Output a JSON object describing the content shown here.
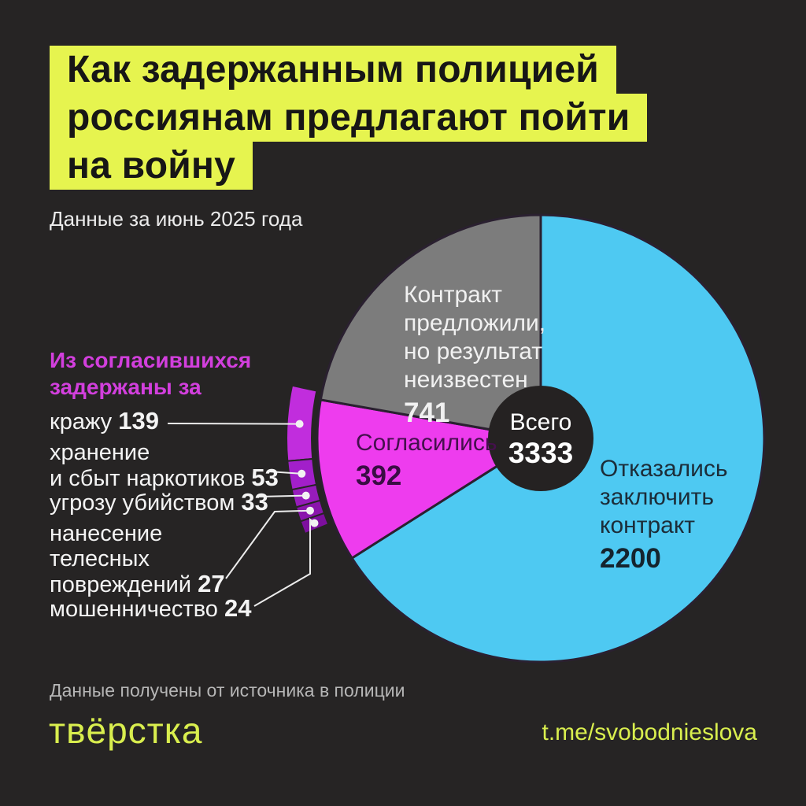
{
  "title": {
    "lines": [
      "Как задержанным полицией",
      "россиянам предлагают пойти",
      "на войну"
    ]
  },
  "subtitle": "Данные за июнь 2025 года",
  "source_note": "Данные получены от источника в полиции",
  "logo_text": "твёрстка",
  "telegram_link": "t.me/svobodnieslova",
  "colors": {
    "background": "#262424",
    "highlight_yellow": "#e6f44f",
    "brand_yellow": "#d9ee4e",
    "refused_cyan": "#4ec9f2",
    "agreed_magenta": "#ee3cee",
    "unknown_gray": "#7c7c7c",
    "breakdown_heading_magenta": "#d23fdd"
  },
  "chart_data": {
    "type": "pie",
    "title": "Как задержанным полицией россиянам предлагают пойти на войну",
    "period": "Данные за июнь 2025 года",
    "center_label": "Всего",
    "total": 3333,
    "legend_position": "on-slices",
    "slices": [
      {
        "label": "Отказались заключить контракт",
        "label_lines": [
          "Отказались",
          "заключить",
          "контракт"
        ],
        "value": 2200,
        "color": "#4ec9f2"
      },
      {
        "label": "Согласились",
        "label_lines": [
          "Согласились"
        ],
        "value": 392,
        "color": "#ee3cee"
      },
      {
        "label": "Контракт предложили, но результат неизвестен",
        "label_lines": [
          "Контракт",
          "предложили,",
          "но результат",
          "неизвестен"
        ],
        "value": 741,
        "color": "#7c7c7c"
      }
    ],
    "breakdown": {
      "heading_lines": [
        "Из согласившихся",
        "задержаны за"
      ],
      "items": [
        {
          "label": "кражу",
          "value": 139,
          "color": "#c12ddd"
        },
        {
          "label": "хранение и сбыт наркотиков",
          "label_lines": [
            "хранение",
            "и сбыт наркотиков"
          ],
          "value": 53,
          "color": "#a21fca"
        },
        {
          "label": "угрозу убийством",
          "value": 33,
          "color": "#961cbb"
        },
        {
          "label": "нанесение телесных повреждений",
          "label_lines": [
            "нанесение",
            "телесных",
            "повреждений"
          ],
          "value": 27,
          "color": "#8a15ac"
        },
        {
          "label": "мошенничество",
          "value": 24,
          "color": "#7d0f9e"
        }
      ]
    }
  }
}
